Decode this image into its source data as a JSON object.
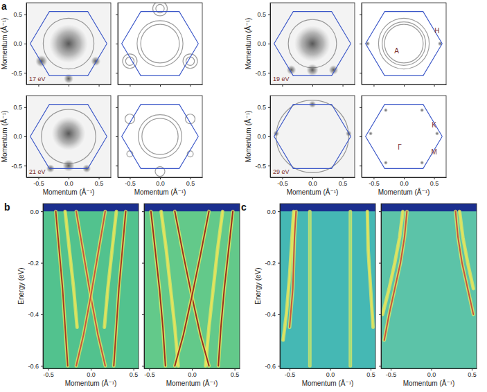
{
  "chart_data": [
    {
      "type": "fermi_map",
      "panel": "a",
      "energy": "17 eV",
      "ylabel": "Momentum (Å⁻¹)",
      "tick_labels": "y",
      "color": "#f3f3f3",
      "xlim": [
        -0.7,
        0.7
      ],
      "ylim": [
        -0.7,
        0.7
      ],
      "xticks": [
        -0.5,
        {
          "value": 0,
          "label": "0.0"
        },
        0.5
      ],
      "yticks": [
        -0.5,
        {
          "value": 0,
          "label": "0.0"
        },
        0.5
      ],
      "outline": {
        "color": "#3a56c8",
        "x": [
          0.635,
          0.318,
          -0.318,
          -0.635,
          -0.318,
          0.318,
          0.635
        ],
        "y": [
          0,
          0.55,
          0.55,
          0,
          -0.55,
          -0.55,
          0
        ]
      },
      "spots": [
        {
          "x": 0,
          "y": 0,
          "r": 0.32
        },
        {
          "x": -0.45,
          "y": -0.3,
          "r": 0.1
        },
        {
          "x": 0.45,
          "y": -0.3,
          "r": 0.08
        },
        {
          "x": 0,
          "y": -0.6,
          "r": 0.08
        }
      ],
      "circles": [
        {
          "x": 0,
          "y": 0,
          "r": 0.42
        }
      ]
    },
    {
      "type": "fermi_map",
      "tick_labels": false,
      "color": "#ffffff",
      "xlim": [
        -0.7,
        0.7
      ],
      "ylim": [
        -0.7,
        0.7
      ],
      "xticks": [
        -0.5,
        {
          "value": 0,
          "label": "0.0"
        },
        0.5
      ],
      "yticks": [
        -0.5,
        {
          "value": 0,
          "label": "0.0"
        },
        0.5
      ],
      "outline": {
        "color": "#3a56c8",
        "x": [
          0.635,
          0.318,
          -0.318,
          -0.635,
          -0.318,
          0.318,
          0.635
        ],
        "y": [
          0,
          0.55,
          0.55,
          0,
          -0.55,
          -0.55,
          0
        ]
      },
      "circles": [
        {
          "x": 0,
          "y": 0,
          "r": 0.32
        },
        {
          "x": 0,
          "y": 0,
          "r": 0.38
        },
        {
          "x": -0.5,
          "y": -0.3,
          "r": 0.07
        },
        {
          "x": -0.5,
          "y": -0.3,
          "r": 0.12
        },
        {
          "x": 0.5,
          "y": -0.3,
          "r": 0.07
        },
        {
          "x": 0.5,
          "y": -0.3,
          "r": 0.12
        },
        {
          "x": 0,
          "y": 0.6,
          "r": 0.07
        },
        {
          "x": 0,
          "y": 0.6,
          "r": 0.12
        }
      ]
    },
    {
      "type": "fermi_map",
      "energy": "19 eV",
      "ylabel": "Momentum (Å⁻¹)",
      "tick_labels": "y",
      "color": "#f3f3f3",
      "xlim": [
        -0.7,
        0.7
      ],
      "ylim": [
        -0.7,
        0.7
      ],
      "xticks": [
        -0.5,
        {
          "value": 0,
          "label": "0.0"
        },
        0.5
      ],
      "yticks": [
        -0.5,
        {
          "value": 0,
          "label": "0.0"
        },
        0.5
      ],
      "outline": {
        "color": "#3a56c8",
        "x": [
          0.635,
          0.318,
          -0.318,
          -0.635,
          -0.318,
          0.318,
          0.635
        ],
        "y": [
          0,
          0.55,
          0.55,
          0,
          -0.55,
          -0.55,
          0
        ]
      },
      "spots": [
        {
          "x": 0,
          "y": 0,
          "r": 0.3
        },
        {
          "x": 0,
          "y": -0.45,
          "r": 0.1
        },
        {
          "x": -0.35,
          "y": -0.45,
          "r": 0.08
        },
        {
          "x": 0.35,
          "y": -0.45,
          "r": 0.08
        }
      ],
      "circles": [
        {
          "x": 0,
          "y": 0,
          "r": 0.4
        }
      ]
    },
    {
      "type": "fermi_map",
      "tick_labels": false,
      "color": "#ffffff",
      "xlim": [
        -0.7,
        0.7
      ],
      "ylim": [
        -0.7,
        0.7
      ],
      "xticks": [
        -0.5,
        {
          "value": 0,
          "label": "0.0"
        },
        0.5
      ],
      "yticks": [
        -0.5,
        {
          "value": 0,
          "label": "0.0"
        },
        0.5
      ],
      "outline": {
        "color": "#3a56c8",
        "x": [
          0.635,
          0.318,
          -0.318,
          -0.635,
          -0.318,
          0.318,
          0.635
        ],
        "y": [
          0,
          0.55,
          0.55,
          0,
          -0.55,
          -0.55,
          0
        ]
      },
      "circles": [
        {
          "x": 0,
          "y": 0,
          "r": 0.32
        },
        {
          "x": 0,
          "y": 0,
          "r": 0.36
        },
        {
          "x": 0,
          "y": 0,
          "r": 0.42
        }
      ],
      "spots": [
        {
          "x": -0.6,
          "y": 0,
          "r": 0.04
        },
        {
          "x": 0.6,
          "y": 0,
          "r": 0.04
        }
      ],
      "labels": [
        {
          "text": "H",
          "x": 0.55,
          "y": 0.22
        },
        {
          "text": "A",
          "x": -0.12,
          "y": -0.12
        }
      ]
    },
    {
      "type": "fermi_map",
      "energy": "21 eV",
      "ylabel": "Momentum (Å⁻¹)",
      "xlabel": "Momentum (Å⁻¹)",
      "color": "#f3f3f3",
      "xlim": [
        -0.7,
        0.7
      ],
      "ylim": [
        -0.7,
        0.7
      ],
      "xticks": [
        -0.5,
        {
          "value": 0,
          "label": "0.0"
        },
        0.5
      ],
      "yticks": [
        -0.5,
        {
          "value": 0,
          "label": "0.0"
        },
        0.5
      ],
      "outline": {
        "color": "#3a56c8",
        "x": [
          0.635,
          0.318,
          -0.318,
          -0.635,
          -0.318,
          0.318,
          0.635
        ],
        "y": [
          0,
          0.55,
          0.55,
          0,
          -0.55,
          -0.55,
          0
        ]
      },
      "spots": [
        {
          "x": 0,
          "y": 0.05,
          "r": 0.28
        },
        {
          "x": 0,
          "y": -0.5,
          "r": 0.1
        },
        {
          "x": -0.3,
          "y": -0.55,
          "r": 0.07
        },
        {
          "x": 0.3,
          "y": -0.55,
          "r": 0.07
        }
      ],
      "circles": [
        {
          "x": 0,
          "y": 0,
          "r": 0.45
        }
      ]
    },
    {
      "type": "fermi_map",
      "xlabel": "Momentum (Å⁻¹)",
      "tick_labels": "x",
      "color": "#ffffff",
      "xlim": [
        -0.7,
        0.7
      ],
      "ylim": [
        -0.7,
        0.7
      ],
      "xticks": [
        -0.5,
        {
          "value": 0,
          "label": "0.0"
        },
        0.5
      ],
      "yticks": [
        -0.5,
        {
          "value": 0,
          "label": "0.0"
        },
        0.5
      ],
      "outline": {
        "color": "#3a56c8",
        "x": [
          0.635,
          0.318,
          -0.318,
          -0.635,
          -0.318,
          0.318,
          0.635
        ],
        "y": [
          0,
          0.55,
          0.55,
          0,
          -0.55,
          -0.55,
          0
        ]
      },
      "circles": [
        {
          "x": 0,
          "y": 0,
          "r": 0.3
        },
        {
          "x": 0,
          "y": 0,
          "r": 0.36
        },
        {
          "x": -0.5,
          "y": 0.3,
          "r": 0.08
        },
        {
          "x": 0.5,
          "y": 0.3,
          "r": 0.08
        },
        {
          "x": 0,
          "y": -0.6,
          "r": 0.08
        },
        {
          "x": -0.5,
          "y": -0.3,
          "r": 0.05
        },
        {
          "x": 0.5,
          "y": -0.3,
          "r": 0.05
        }
      ]
    },
    {
      "type": "fermi_map",
      "energy": "29 eV",
      "ylabel": "Momentum (Å⁻¹)",
      "xlabel": "Momentum (Å⁻¹)",
      "color": "#f3f3f3",
      "xlim": [
        -0.7,
        0.7
      ],
      "ylim": [
        -0.7,
        0.7
      ],
      "xticks": [
        -0.5,
        {
          "value": 0,
          "label": "0.0"
        },
        0.5
      ],
      "yticks": [
        -0.5,
        {
          "value": 0,
          "label": "0.0"
        },
        0.5
      ],
      "outline": {
        "color": "#3a56c8",
        "x": [
          0.635,
          0.318,
          -0.318,
          -0.635,
          -0.318,
          0.318,
          0.635
        ],
        "y": [
          0,
          0.55,
          0.55,
          0,
          -0.55,
          -0.55,
          0
        ]
      },
      "spots": [
        {
          "x": -0.6,
          "y": 0.05,
          "r": 0.05
        },
        {
          "x": 0.6,
          "y": 0.05,
          "r": 0.05
        },
        {
          "x": 0,
          "y": 0.55,
          "r": 0.06
        }
      ],
      "circles": [
        {
          "x": 0,
          "y": 0,
          "r": 0.6
        }
      ]
    },
    {
      "type": "fermi_map",
      "xlabel": "Momentum (Å⁻¹)",
      "tick_labels": "x",
      "color": "#ffffff",
      "xlim": [
        -0.7,
        0.7
      ],
      "ylim": [
        -0.7,
        0.7
      ],
      "xticks": [
        -0.5,
        {
          "value": 0,
          "label": "0.0"
        },
        0.5
      ],
      "yticks": [
        -0.5,
        {
          "value": 0,
          "label": "0.0"
        },
        0.5
      ],
      "outline": {
        "color": "#3a56c8",
        "x": [
          0.635,
          0.318,
          -0.318,
          -0.635,
          -0.318,
          0.318,
          0.635
        ],
        "y": [
          0,
          0.55,
          0.55,
          0,
          -0.55,
          -0.55,
          0
        ]
      },
      "spots": [
        {
          "x": -0.55,
          "y": 0.05,
          "r": 0.035
        },
        {
          "x": 0.55,
          "y": 0.05,
          "r": 0.035
        },
        {
          "x": -0.3,
          "y": 0.45,
          "r": 0.035
        },
        {
          "x": 0.3,
          "y": 0.45,
          "r": 0.035
        },
        {
          "x": -0.3,
          "y": -0.45,
          "r": 0.035
        },
        {
          "x": 0.3,
          "y": -0.45,
          "r": 0.035
        }
      ],
      "labels": [
        {
          "text": "K",
          "x": 0.5,
          "y": 0.2
        },
        {
          "text": "Γ",
          "x": -0.07,
          "y": -0.18
        },
        {
          "text": "M",
          "x": 0.5,
          "y": -0.27
        }
      ]
    },
    {
      "type": "dispersion",
      "panel": "b",
      "xlabel": "Momentum (Å⁻¹)",
      "ylabel": "Energy (eV)",
      "color": "#52c28e",
      "fermi_level": 0,
      "xlim": [
        -0.56,
        0.56
      ],
      "ylim": [
        -0.61,
        0.03
      ],
      "xticks": [
        -0.5,
        {
          "value": 0,
          "label": "0.0"
        },
        0.5
      ],
      "yticks": [
        {
          "value": 0,
          "label": "0.0"
        },
        -0.2,
        -0.4,
        -0.6
      ],
      "series": [
        {
          "color": "#a8381f",
          "x": [
            -0.41,
            -0.37,
            -0.33,
            -0.3,
            -0.27
          ],
          "values": [
            0,
            -0.15,
            -0.3,
            -0.45,
            -0.6
          ]
        },
        {
          "color": "#a8381f",
          "x": [
            0.41,
            0.37,
            0.33,
            0.3,
            0.27
          ],
          "values": [
            0,
            -0.15,
            -0.3,
            -0.45,
            -0.6
          ]
        },
        {
          "color": "#c8553a",
          "x": [
            -0.17,
            -0.085,
            0,
            0.085,
            0.17
          ],
          "values": [
            0,
            -0.165,
            -0.33,
            -0.48,
            -0.6
          ]
        },
        {
          "color": "#c8553a",
          "x": [
            0.17,
            0.085,
            0,
            -0.085,
            -0.17
          ],
          "values": [
            0,
            -0.165,
            -0.33,
            -0.48,
            -0.6
          ]
        },
        {
          "color": "#e4e35a",
          "x": [
            -0.3,
            -0.25,
            -0.2,
            -0.16
          ],
          "values": [
            0,
            -0.15,
            -0.3,
            -0.45
          ]
        },
        {
          "color": "#e4e35a",
          "x": [
            0.3,
            0.25,
            0.2,
            0.16
          ],
          "values": [
            0,
            -0.15,
            -0.3,
            -0.45
          ]
        }
      ]
    },
    {
      "type": "dispersion",
      "xlabel": "Momentum (Å⁻¹)",
      "tick_labels": "x",
      "color": "#63c98a",
      "fermi_level": 0,
      "xlim": [
        -0.56,
        0.56
      ],
      "ylim": [
        -0.61,
        0.03
      ],
      "xticks": [
        -0.5,
        {
          "value": 0,
          "label": "0.0"
        },
        0.5
      ],
      "yticks": [
        {
          "value": 0,
          "label": "0.0"
        },
        -0.2,
        -0.4,
        -0.6
      ],
      "series": [
        {
          "color": "#9c2f1c",
          "x": [
            -0.48,
            -0.43,
            -0.38,
            -0.34,
            -0.31
          ],
          "values": [
            0,
            -0.15,
            -0.3,
            -0.45,
            -0.6
          ]
        },
        {
          "color": "#9c2f1c",
          "x": [
            0.48,
            0.43,
            0.38,
            0.34,
            0.31
          ],
          "values": [
            0,
            -0.15,
            -0.3,
            -0.45,
            -0.6
          ]
        },
        {
          "color": "#e8e35a",
          "x": [
            -0.36,
            -0.3,
            -0.25,
            -0.2,
            -0.16
          ],
          "values": [
            0,
            -0.15,
            -0.3,
            -0.45,
            -0.6
          ]
        },
        {
          "color": "#e8e35a",
          "x": [
            0.36,
            0.3,
            0.25,
            0.2,
            0.16
          ],
          "values": [
            0,
            -0.15,
            -0.3,
            -0.45,
            -0.6
          ]
        },
        {
          "color": "#9c2f1c",
          "x": [
            -0.2,
            -0.1,
            0,
            0.1,
            0.2
          ],
          "values": [
            0,
            -0.17,
            -0.33,
            -0.48,
            -0.6
          ]
        },
        {
          "color": "#9c2f1c",
          "x": [
            0.2,
            0.1,
            0,
            -0.1,
            -0.2
          ],
          "values": [
            0,
            -0.17,
            -0.33,
            -0.48,
            -0.6
          ]
        }
      ]
    },
    {
      "type": "dispersion",
      "panel": "c",
      "xlabel": "Momentum (Å⁻¹)",
      "ylabel": "Energy (eV)",
      "color": "#45b8b4",
      "fermi_level": 0,
      "xlim": [
        -0.62,
        0.56
      ],
      "ylim": [
        -0.61,
        0.03
      ],
      "xticks": [
        -0.5,
        {
          "value": 0,
          "label": "0.0"
        },
        0.5
      ],
      "yticks": [
        {
          "value": 0,
          "label": "0.0"
        },
        -0.2,
        -0.4,
        -0.6
      ],
      "series": [
        {
          "color": "#e4e35a",
          "x": [
            -0.45,
            -0.47,
            -0.5,
            -0.54,
            -0.58
          ],
          "values": [
            0,
            -0.1,
            -0.25,
            -0.4,
            -0.5
          ]
        },
        {
          "color": "#c8553a",
          "x": [
            -0.42,
            -0.44,
            -0.46,
            -0.5
          ],
          "values": [
            0,
            -0.1,
            -0.3,
            -0.45
          ]
        },
        {
          "color": "#e4e35a",
          "x": [
            0.46,
            0.47,
            0.5,
            0.53
          ],
          "values": [
            0,
            -0.15,
            -0.3,
            -0.45
          ]
        },
        {
          "color": "#9fe07a",
          "x": [
            -0.25,
            -0.25
          ],
          "values": [
            0,
            -0.6
          ]
        },
        {
          "color": "#9fe07a",
          "x": [
            0.25,
            0.25
          ],
          "values": [
            0,
            -0.6
          ]
        }
      ]
    },
    {
      "type": "dispersion",
      "xlabel": "Momentum (Å⁻¹)",
      "tick_labels": "x",
      "color": "#5cc3a8",
      "fermi_level": 0,
      "xlim": [
        -0.62,
        0.56
      ],
      "ylim": [
        -0.61,
        0.03
      ],
      "xticks": [
        -0.5,
        {
          "value": 0,
          "label": "0.0"
        },
        0.5
      ],
      "yticks": [
        {
          "value": 0,
          "label": "0.0"
        },
        -0.2,
        -0.4,
        -0.6
      ],
      "series": [
        {
          "color": "#c8553a",
          "x": [
            -0.3,
            -0.33,
            -0.38,
            -0.45,
            -0.52,
            -0.58
          ],
          "values": [
            0,
            -0.1,
            -0.2,
            -0.3,
            -0.4,
            -0.5
          ]
        },
        {
          "color": "#e4e35a",
          "x": [
            -0.35,
            -0.39,
            -0.45,
            -0.52,
            -0.6
          ],
          "values": [
            0,
            -0.1,
            -0.2,
            -0.3,
            -0.4
          ]
        },
        {
          "color": "#c8553a",
          "x": [
            0.3,
            0.33,
            0.38,
            0.45,
            0.52
          ],
          "values": [
            0,
            -0.1,
            -0.2,
            -0.3,
            -0.4
          ]
        },
        {
          "color": "#e4e35a",
          "x": [
            0.35,
            0.39,
            0.45,
            0.52
          ],
          "values": [
            0,
            -0.1,
            -0.2,
            -0.3
          ]
        }
      ]
    }
  ]
}
